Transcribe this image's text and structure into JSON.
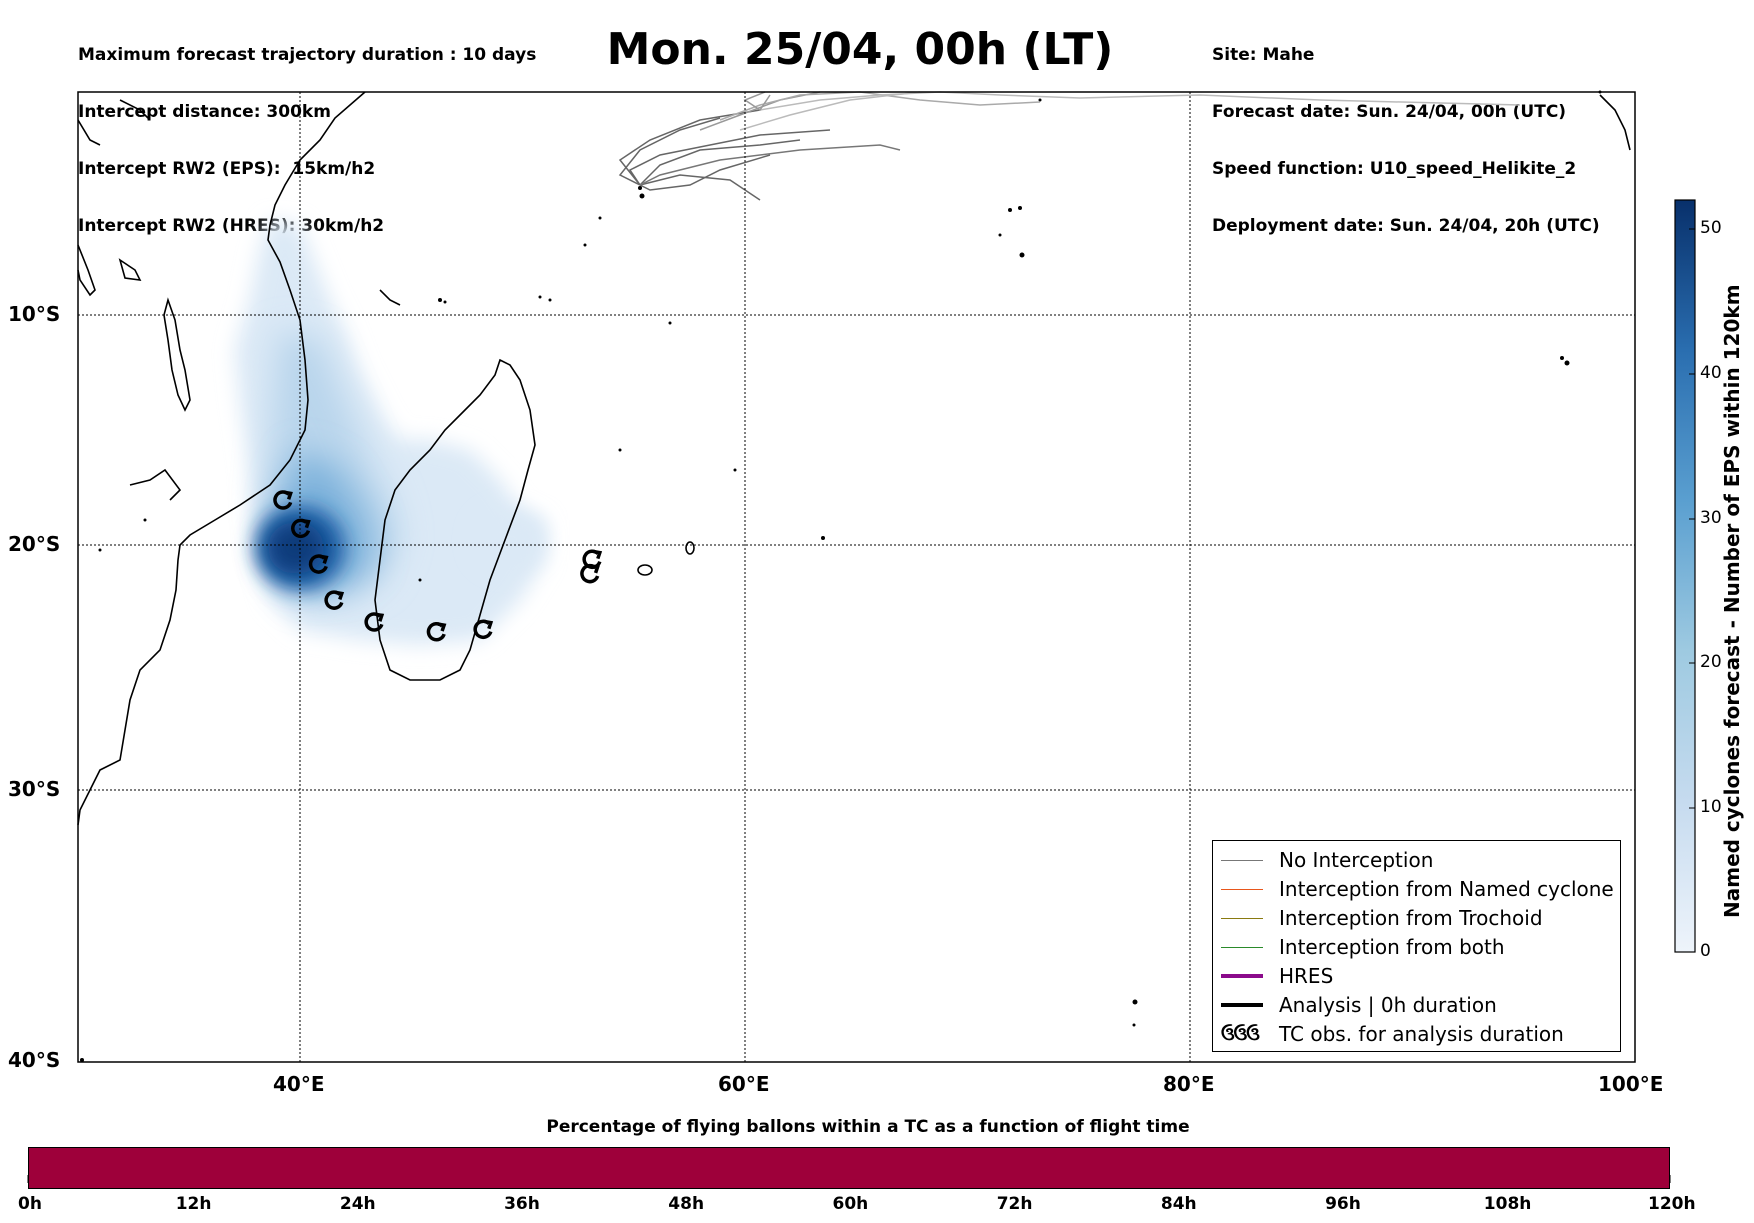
{
  "header_left": [
    "Maximum forecast trajectory duration : 10 days",
    "Intercept distance: 300km",
    "Intercept RW2 (EPS):  15km/h2",
    "Intercept RW2 (HRES): 30km/h2"
  ],
  "header_right": [
    "Site: Mahe",
    "Forecast date: Sun. 24/04, 00h (UTC)",
    "Speed function: U10_speed_Helikite_2",
    "Deployment date: Sun. 24/04, 20h (UTC)"
  ],
  "title": "Mon. 25/04, 00h (LT)",
  "map": {
    "lat_labels": [
      "10°S",
      "20°S",
      "30°S",
      "40°S"
    ],
    "lon_labels": [
      "40°E",
      "60°E",
      "80°E",
      "100°E"
    ],
    "lon_range": [
      30,
      100
    ],
    "lat_range": [
      -40,
      -0.3
    ]
  },
  "tc_observations": [
    {
      "lon": 39.2,
      "lat": -18.3
    },
    {
      "lon": 40.0,
      "lat": -19.5
    },
    {
      "lon": 40.8,
      "lat": -21.0
    },
    {
      "lon": 41.5,
      "lat": -22.5
    },
    {
      "lon": 43.3,
      "lat": -23.4
    },
    {
      "lon": 46.1,
      "lat": -23.8
    },
    {
      "lon": 48.2,
      "lat": -23.7
    },
    {
      "lon": 53.1,
      "lat": -20.8
    },
    {
      "lon": 53.0,
      "lat": -21.4
    }
  ],
  "legend": {
    "items": [
      {
        "label": "No Interception",
        "color": "#777777"
      },
      {
        "label": "Interception from Named cyclone",
        "color": "#e8561c"
      },
      {
        "label": "Interception from Trochoid",
        "color": "#8a7a10"
      },
      {
        "label": "Interception from both",
        "color": "#2a8a2a"
      },
      {
        "label": "HRES",
        "color": "#8b0a8b"
      },
      {
        "label": "Analysis | 0h duration",
        "color": "#000000"
      },
      {
        "label": "TC obs. for analysis duration",
        "color": "#000000",
        "icon": "cyclone-symbols",
        "glyph": "ઉઉઉ"
      }
    ]
  },
  "colorbar": {
    "label": "Named cyclones forecast - Number of EPS within 120km",
    "ticks": [
      "0",
      "10",
      "20",
      "30",
      "40",
      "50"
    ],
    "range": [
      0,
      52
    ],
    "colors": [
      "#eaf2fb",
      "#c6dbef",
      "#9ecae1",
      "#6baed6",
      "#3182bd",
      "#08306b"
    ]
  },
  "flight_bar": {
    "title": "Percentage of flying ballons within a TC as a function of flight time",
    "ticks": [
      "0h",
      "12h",
      "24h",
      "36h",
      "48h",
      "60h",
      "72h",
      "84h",
      "96h",
      "108h",
      "120h"
    ],
    "fill_color": "#9e003a"
  }
}
